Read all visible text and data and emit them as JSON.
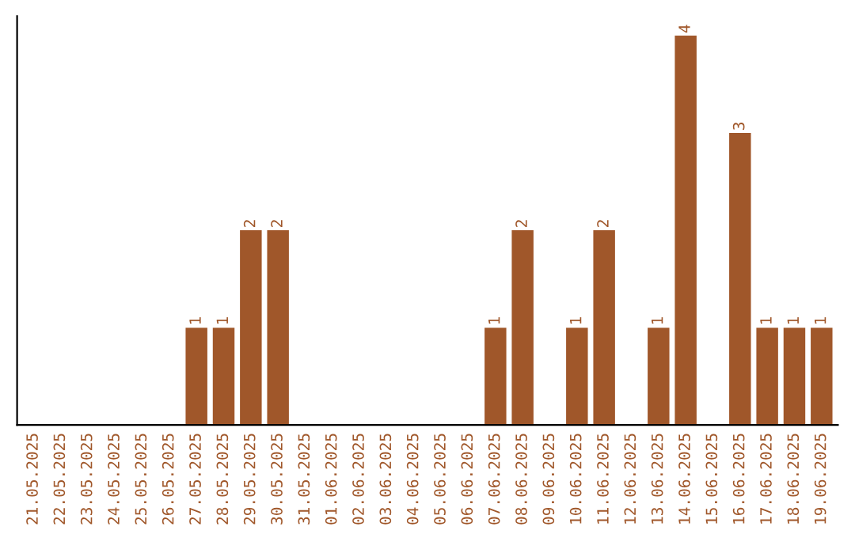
{
  "chart_data": {
    "type": "bar",
    "categories": [
      "21.05.2025",
      "22.05.2025",
      "23.05.2025",
      "24.05.2025",
      "25.05.2025",
      "26.05.2025",
      "27.05.2025",
      "28.05.2025",
      "29.05.2025",
      "30.05.2025",
      "31.05.2025",
      "01.06.2025",
      "02.06.2025",
      "03.06.2025",
      "04.06.2025",
      "05.06.2025",
      "06.06.2025",
      "07.06.2025",
      "08.06.2025",
      "09.06.2025",
      "10.06.2025",
      "11.06.2025",
      "12.06.2025",
      "13.06.2025",
      "14.06.2025",
      "15.06.2025",
      "16.06.2025",
      "17.06.2025",
      "18.06.2025",
      "19.06.2025"
    ],
    "values": [
      0,
      0,
      0,
      0,
      0,
      0,
      1,
      1,
      2,
      2,
      0,
      0,
      0,
      0,
      0,
      0,
      0,
      1,
      2,
      0,
      1,
      2,
      0,
      1,
      4,
      0,
      3,
      1,
      1,
      1
    ],
    "value_labels": [
      null,
      null,
      null,
      null,
      null,
      null,
      "1",
      "1",
      "2",
      "2",
      null,
      null,
      null,
      null,
      null,
      null,
      null,
      "1",
      "2",
      null,
      "1",
      "2",
      null,
      "1",
      "4",
      null,
      "3",
      "1",
      "1",
      "1"
    ],
    "color": "#a0572a",
    "grid": false,
    "legend": false
  }
}
